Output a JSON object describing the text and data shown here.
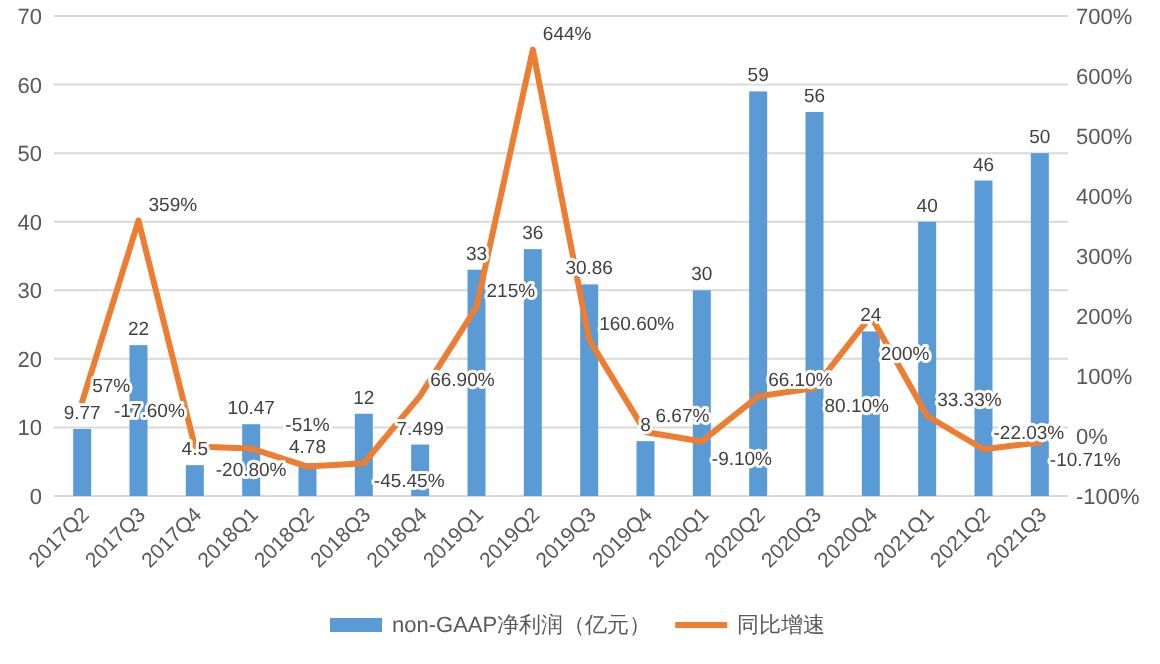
{
  "chart_data": {
    "type": "bar",
    "categories": [
      "2017Q2",
      "2017Q3",
      "2017Q4",
      "2018Q1",
      "2018Q2",
      "2018Q3",
      "2018Q4",
      "2019Q1",
      "2019Q2",
      "2019Q3",
      "2019Q4",
      "2020Q1",
      "2020Q2",
      "2020Q3",
      "2020Q4",
      "2021Q1",
      "2021Q2",
      "2021Q3"
    ],
    "series": [
      {
        "name": "non-GAAP净利润（亿元）",
        "type": "bar",
        "color": "#5b9bd5",
        "values": [
          9.77,
          22,
          4.5,
          10.47,
          4.78,
          12,
          7.499,
          33,
          36,
          30.86,
          8,
          30,
          59,
          56,
          24,
          40,
          46,
          50
        ],
        "value_labels": [
          "9.77",
          "22",
          "4.5",
          "10.47",
          "4.78",
          "12",
          "7.499",
          "33",
          "36",
          "30.86",
          "8",
          "30",
          "59",
          "56",
          "24",
          "40",
          "46",
          "50"
        ]
      },
      {
        "name": "同比增速",
        "type": "line",
        "axis": "y2",
        "color": "#ed7d31",
        "values": [
          57,
          359,
          -17.6,
          -20.8,
          -51,
          -45.45,
          66.9,
          215,
          644,
          160.6,
          6.67,
          -9.1,
          66.1,
          80.1,
          200,
          33.33,
          -22.03,
          -10.71
        ],
        "value_labels": [
          "57%",
          "359%",
          "-17.60%",
          "-20.80%",
          "-51%",
          "-45.45%",
          "66.90%",
          "215%",
          "644%",
          "160.60%",
          "6.67%",
          "-9.10%",
          "66.10%",
          "80.10%",
          "200%",
          "33.33%",
          "-22.03%",
          "-10.71%"
        ]
      }
    ],
    "ylim": [
      0,
      70
    ],
    "yticks": [
      0,
      10,
      20,
      30,
      40,
      50,
      60,
      70
    ],
    "y2lim": [
      -100,
      700
    ],
    "y2ticks": [
      {
        "value": -100,
        "label": "-100%"
      },
      {
        "value": 0,
        "label": "0%"
      },
      {
        "value": 100,
        "label": "100%"
      },
      {
        "value": 200,
        "label": "200%"
      },
      {
        "value": 300,
        "label": "300%"
      },
      {
        "value": 400,
        "label": "400%"
      },
      {
        "value": 500,
        "label": "500%"
      },
      {
        "value": 600,
        "label": "600%"
      },
      {
        "value": 700,
        "label": "700%"
      }
    ],
    "grid": "y",
    "legend": "bottom"
  }
}
